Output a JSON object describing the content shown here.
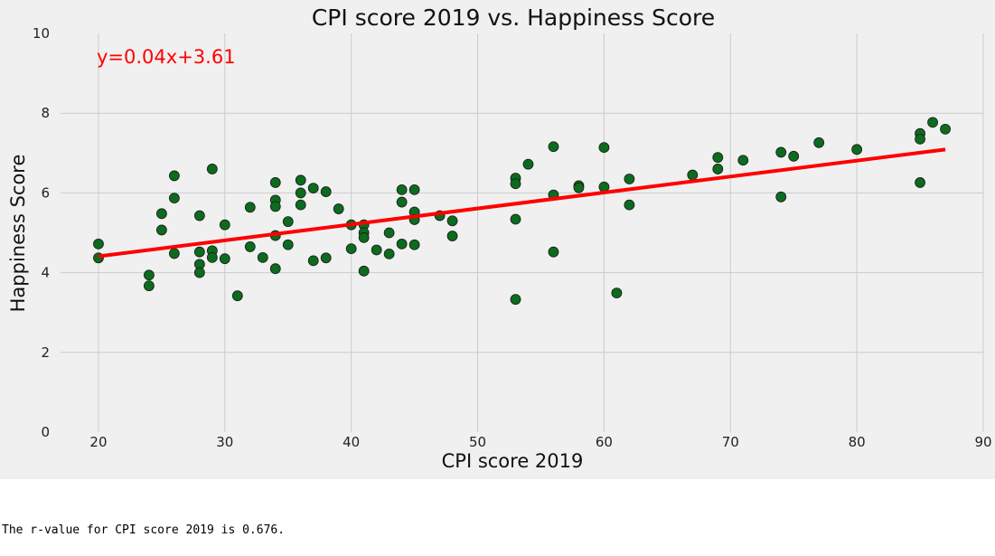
{
  "chart_data": {
    "type": "scatter",
    "title": "CPI score 2019 vs. Happiness Score",
    "xlabel": "CPI score 2019",
    "ylabel": "Happiness Score",
    "xlim": [
      17,
      90
    ],
    "ylim": [
      0,
      10
    ],
    "xticks": [
      "20",
      "30",
      "40",
      "50",
      "60",
      "70",
      "80",
      "90"
    ],
    "yticks": [
      "0",
      "2",
      "4",
      "6",
      "8",
      "10"
    ],
    "grid": true,
    "point_color": "#0d6b1e",
    "line_color": "#ff0000",
    "background_color": "#f0f0f0",
    "annotation": "y=0.04x+3.61",
    "regression": {
      "slope": 0.04,
      "intercept": 3.61,
      "x_range": [
        20,
        87
      ]
    },
    "points": [
      [
        20,
        4.72
      ],
      [
        20,
        4.37
      ],
      [
        24,
        3.94
      ],
      [
        24,
        3.67
      ],
      [
        25,
        5.48
      ],
      [
        25,
        5.07
      ],
      [
        26,
        6.43
      ],
      [
        26,
        5.87
      ],
      [
        26,
        4.48
      ],
      [
        28,
        5.43
      ],
      [
        28,
        4.52
      ],
      [
        28,
        4.21
      ],
      [
        28,
        4.0
      ],
      [
        29,
        6.6
      ],
      [
        29,
        4.55
      ],
      [
        29,
        4.38
      ],
      [
        30,
        5.2
      ],
      [
        30,
        4.35
      ],
      [
        31,
        3.42
      ],
      [
        32,
        5.64
      ],
      [
        32,
        4.65
      ],
      [
        33,
        4.38
      ],
      [
        34,
        6.26
      ],
      [
        34,
        5.82
      ],
      [
        34,
        5.66
      ],
      [
        34,
        4.93
      ],
      [
        34,
        4.1
      ],
      [
        35,
        5.28
      ],
      [
        35,
        4.7
      ],
      [
        36,
        6.32
      ],
      [
        36,
        6.0
      ],
      [
        36,
        5.7
      ],
      [
        37,
        6.12
      ],
      [
        37,
        4.3
      ],
      [
        38,
        6.03
      ],
      [
        38,
        4.37
      ],
      [
        39,
        5.6
      ],
      [
        40,
        5.2
      ],
      [
        40,
        4.6
      ],
      [
        41,
        5.2
      ],
      [
        41,
        5.0
      ],
      [
        41,
        4.88
      ],
      [
        41,
        4.04
      ],
      [
        42,
        4.57
      ],
      [
        43,
        5.0
      ],
      [
        43,
        4.47
      ],
      [
        44,
        6.08
      ],
      [
        44,
        5.77
      ],
      [
        44,
        4.72
      ],
      [
        45,
        6.08
      ],
      [
        45,
        5.52
      ],
      [
        45,
        5.33
      ],
      [
        45,
        4.7
      ],
      [
        47,
        5.43
      ],
      [
        48,
        5.3
      ],
      [
        48,
        4.92
      ],
      [
        53,
        6.37
      ],
      [
        53,
        6.23
      ],
      [
        53,
        5.34
      ],
      [
        53,
        3.33
      ],
      [
        54,
        6.72
      ],
      [
        56,
        7.16
      ],
      [
        56,
        5.95
      ],
      [
        56,
        4.52
      ],
      [
        58,
        6.18
      ],
      [
        58,
        6.13
      ],
      [
        60,
        7.14
      ],
      [
        60,
        6.15
      ],
      [
        61,
        3.49
      ],
      [
        62,
        6.35
      ],
      [
        62,
        5.7
      ],
      [
        67,
        6.45
      ],
      [
        69,
        6.89
      ],
      [
        69,
        6.6
      ],
      [
        71,
        6.82
      ],
      [
        74,
        7.02
      ],
      [
        74,
        5.9
      ],
      [
        75,
        6.92
      ],
      [
        77,
        7.26
      ],
      [
        80,
        7.09
      ],
      [
        85,
        7.49
      ],
      [
        85,
        7.35
      ],
      [
        85,
        6.26
      ],
      [
        86,
        7.77
      ],
      [
        87,
        7.6
      ]
    ]
  },
  "output_text": "The r-value for CPI score 2019 is 0.676."
}
